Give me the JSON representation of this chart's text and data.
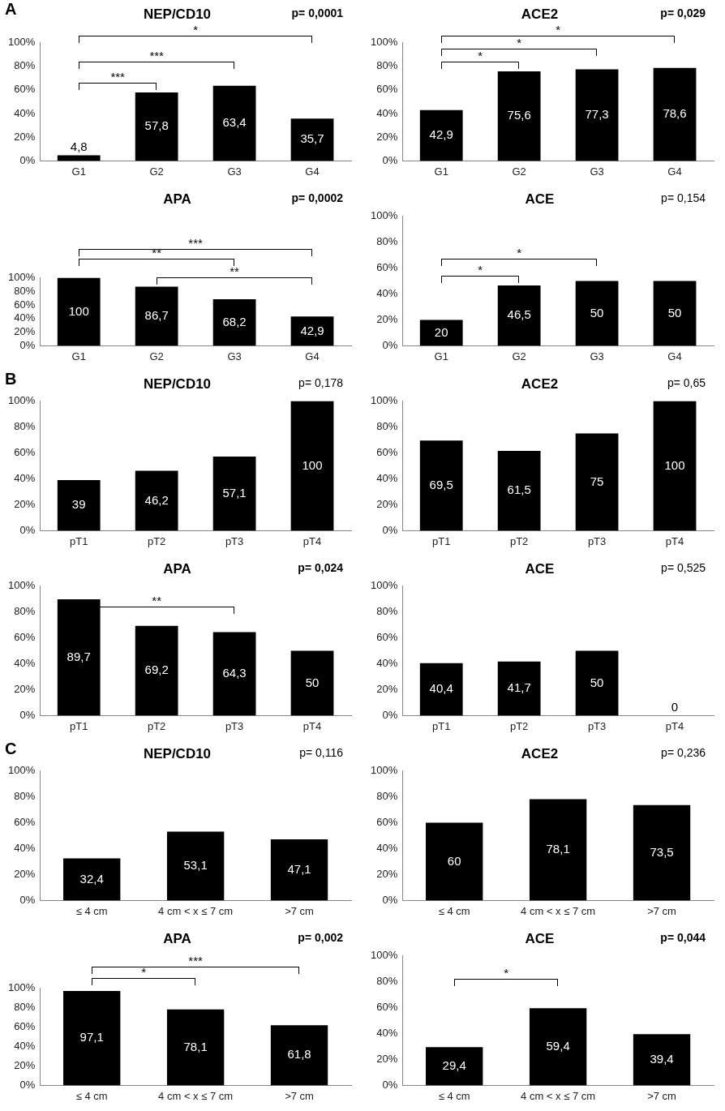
{
  "chart_data": [
    {
      "type": "bar",
      "title": "NEP/CD10",
      "categories": [
        "G1",
        "G2",
        "G3",
        "G4"
      ],
      "values": [
        4.8,
        57.8,
        63.4,
        35.7
      ],
      "value_labels": [
        "4,8",
        "57,8",
        "63,4",
        "35,7"
      ],
      "color": "#000000",
      "ylim": [
        0,
        100
      ],
      "yticks": [
        {
          "value": 0,
          "label": "0%"
        },
        {
          "value": 20,
          "label": "20%"
        },
        {
          "value": 40,
          "label": "40%"
        },
        {
          "value": 60,
          "label": "60%"
        },
        {
          "value": 80,
          "label": "80%"
        },
        {
          "value": 100,
          "label": "100%"
        }
      ],
      "annotations": [
        "A",
        "p= 0,0001",
        "***",
        "***",
        "*"
      ]
    },
    {
      "type": "bar",
      "title": "ACE2",
      "categories": [
        "G1",
        "G2",
        "G3",
        "G4"
      ],
      "values": [
        42.9,
        75.6,
        77.3,
        78.6
      ],
      "value_labels": [
        "42,9",
        "75,6",
        "77,3",
        "78,6"
      ],
      "color": "#000000",
      "ylim": [
        0,
        100
      ],
      "yticks": [
        {
          "value": 0,
          "label": "0%"
        },
        {
          "value": 20,
          "label": "20%"
        },
        {
          "value": 40,
          "label": "40%"
        },
        {
          "value": 60,
          "label": "60%"
        },
        {
          "value": 80,
          "label": "80%"
        },
        {
          "value": 100,
          "label": "100%"
        }
      ],
      "annotations": [
        "p= 0,029",
        "*",
        "*",
        "*"
      ]
    },
    {
      "type": "bar",
      "title": "APA",
      "categories": [
        "G1",
        "G2",
        "G3",
        "G4"
      ],
      "values": [
        100,
        86.7,
        68.2,
        42.9
      ],
      "value_labels": [
        "100",
        "86,7",
        "68,2",
        "42,9"
      ],
      "color": "#000000",
      "ylim": [
        0,
        100
      ],
      "yticks": [
        {
          "value": 0,
          "label": "0%"
        },
        {
          "value": 20,
          "label": "20%"
        },
        {
          "value": 40,
          "label": "40%"
        },
        {
          "value": 60,
          "label": "60%"
        },
        {
          "value": 80,
          "label": "80%"
        },
        {
          "value": 100,
          "label": "100%"
        }
      ],
      "annotations": [
        "p= 0,0002",
        "***",
        "**",
        "**"
      ]
    },
    {
      "type": "bar",
      "title": "ACE",
      "categories": [
        "G1",
        "G2",
        "G3",
        "G4"
      ],
      "values": [
        20,
        46.5,
        50,
        50
      ],
      "value_labels": [
        "20",
        "46,5",
        "50",
        "50"
      ],
      "color": "#000000",
      "ylim": [
        0,
        100
      ],
      "yticks": [
        {
          "value": 0,
          "label": "0%"
        },
        {
          "value": 20,
          "label": "20%"
        },
        {
          "value": 40,
          "label": "40%"
        },
        {
          "value": 60,
          "label": "60%"
        },
        {
          "value": 80,
          "label": "80%"
        },
        {
          "value": 100,
          "label": "100%"
        }
      ],
      "annotations": [
        "p= 0,154",
        "*",
        "*"
      ]
    },
    {
      "type": "bar",
      "title": "NEP/CD10",
      "categories": [
        "pT1",
        "pT2",
        "pT3",
        "pT4"
      ],
      "values": [
        39,
        46.2,
        57.1,
        100
      ],
      "value_labels": [
        "39",
        "46,2",
        "57,1",
        "100"
      ],
      "color": "#000000",
      "ylim": [
        0,
        100
      ],
      "yticks": [
        {
          "value": 0,
          "label": "0%"
        },
        {
          "value": 20,
          "label": "20%"
        },
        {
          "value": 40,
          "label": "40%"
        },
        {
          "value": 60,
          "label": "60%"
        },
        {
          "value": 80,
          "label": "80%"
        },
        {
          "value": 100,
          "label": "100%"
        }
      ],
      "annotations": [
        "B",
        "p= 0,178"
      ]
    },
    {
      "type": "bar",
      "title": "ACE2",
      "categories": [
        "pT1",
        "pT2",
        "pT3",
        "pT4"
      ],
      "values": [
        69.5,
        61.5,
        75,
        100
      ],
      "value_labels": [
        "69,5",
        "61,5",
        "75",
        "100"
      ],
      "color": "#000000",
      "ylim": [
        0,
        100
      ],
      "yticks": [
        {
          "value": 0,
          "label": "0%"
        },
        {
          "value": 20,
          "label": "20%"
        },
        {
          "value": 40,
          "label": "40%"
        },
        {
          "value": 60,
          "label": "60%"
        },
        {
          "value": 80,
          "label": "80%"
        },
        {
          "value": 100,
          "label": "100%"
        }
      ],
      "annotations": [
        "p= 0,65"
      ]
    },
    {
      "type": "bar",
      "title": "APA",
      "categories": [
        "pT1",
        "pT2",
        "pT3",
        "pT4"
      ],
      "values": [
        89.7,
        69.2,
        64.3,
        50
      ],
      "value_labels": [
        "89,7",
        "69,2",
        "64,3",
        "50"
      ],
      "color": "#000000",
      "ylim": [
        0,
        100
      ],
      "yticks": [
        {
          "value": 0,
          "label": "0%"
        },
        {
          "value": 20,
          "label": "20%"
        },
        {
          "value": 40,
          "label": "40%"
        },
        {
          "value": 60,
          "label": "60%"
        },
        {
          "value": 80,
          "label": "80%"
        },
        {
          "value": 100,
          "label": "100%"
        }
      ],
      "annotations": [
        "p= 0,024",
        "**"
      ]
    },
    {
      "type": "bar",
      "title": "ACE",
      "categories": [
        "pT1",
        "pT2",
        "pT3",
        "pT4"
      ],
      "values": [
        40.4,
        41.7,
        50,
        0
      ],
      "value_labels": [
        "40,4",
        "41,7",
        "50",
        "0"
      ],
      "color": "#000000",
      "ylim": [
        0,
        100
      ],
      "yticks": [
        {
          "value": 0,
          "label": "0%"
        },
        {
          "value": 20,
          "label": "20%"
        },
        {
          "value": 40,
          "label": "40%"
        },
        {
          "value": 60,
          "label": "60%"
        },
        {
          "value": 80,
          "label": "80%"
        },
        {
          "value": 100,
          "label": "100%"
        }
      ],
      "annotations": [
        "p= 0,525"
      ]
    },
    {
      "type": "bar",
      "title": "NEP/CD10",
      "categories": [
        "≤ 4 cm",
        "4 cm < x ≤ 7 cm",
        ">7 cm"
      ],
      "values": [
        32.4,
        53.1,
        47.1
      ],
      "value_labels": [
        "32,4",
        "53,1",
        "47,1"
      ],
      "color": "#000000",
      "ylim": [
        0,
        100
      ],
      "yticks": [
        {
          "value": 0,
          "label": "0%"
        },
        {
          "value": 20,
          "label": "20%"
        },
        {
          "value": 40,
          "label": "40%"
        },
        {
          "value": 60,
          "label": "60%"
        },
        {
          "value": 80,
          "label": "80%"
        },
        {
          "value": 100,
          "label": "100%"
        }
      ],
      "annotations": [
        "C",
        "p= 0,116"
      ]
    },
    {
      "type": "bar",
      "title": "ACE2",
      "categories": [
        "≤ 4 cm",
        "4 cm < x ≤ 7 cm",
        ">7 cm"
      ],
      "values": [
        60,
        78.1,
        73.5
      ],
      "value_labels": [
        "60",
        "78,1",
        "73,5"
      ],
      "color": "#000000",
      "ylim": [
        0,
        100
      ],
      "yticks": [
        {
          "value": 0,
          "label": "0%"
        },
        {
          "value": 20,
          "label": "20%"
        },
        {
          "value": 40,
          "label": "40%"
        },
        {
          "value": 60,
          "label": "60%"
        },
        {
          "value": 80,
          "label": "80%"
        },
        {
          "value": 100,
          "label": "100%"
        }
      ],
      "annotations": [
        "p= 0,236"
      ]
    },
    {
      "type": "bar",
      "title": "APA",
      "categories": [
        "≤ 4 cm",
        "4 cm < x ≤ 7 cm",
        ">7 cm"
      ],
      "values": [
        97.1,
        78.1,
        61.8
      ],
      "value_labels": [
        "97,1",
        "78,1",
        "61,8"
      ],
      "color": "#000000",
      "ylim": [
        0,
        100
      ],
      "yticks": [
        {
          "value": 0,
          "label": "0%"
        },
        {
          "value": 20,
          "label": "20%"
        },
        {
          "value": 40,
          "label": "40%"
        },
        {
          "value": 60,
          "label": "60%"
        },
        {
          "value": 80,
          "label": "80%"
        },
        {
          "value": 100,
          "label": "100%"
        }
      ],
      "annotations": [
        "p= 0,002",
        "*",
        "***"
      ]
    },
    {
      "type": "bar",
      "title": "ACE",
      "categories": [
        "≤ 4 cm",
        "4 cm < x ≤ 7 cm",
        ">7 cm"
      ],
      "values": [
        29.4,
        59.4,
        39.4
      ],
      "value_labels": [
        "29,4",
        "59,4",
        "39,4"
      ],
      "color": "#000000",
      "ylim": [
        0,
        100
      ],
      "yticks": [
        {
          "value": 0,
          "label": "0%"
        },
        {
          "value": 20,
          "label": "20%"
        },
        {
          "value": 40,
          "label": "40%"
        },
        {
          "value": 60,
          "label": "60%"
        },
        {
          "value": 80,
          "label": "80%"
        },
        {
          "value": 100,
          "label": "100%"
        }
      ],
      "annotations": [
        "p= 0,044",
        "*"
      ]
    }
  ]
}
